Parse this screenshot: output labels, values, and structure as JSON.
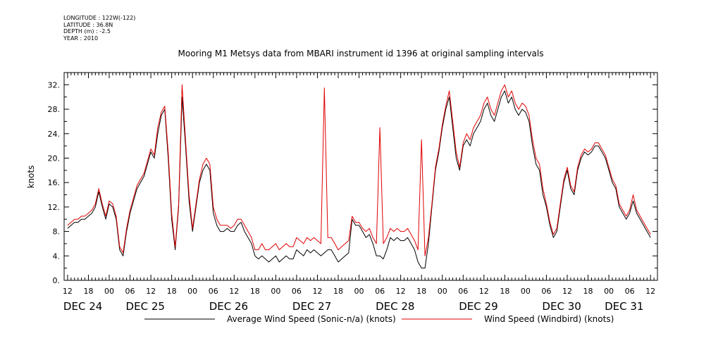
{
  "meta": {
    "longitude": "LONGITUDE : 122W(-122)",
    "latitude": "LATITUDE : 36.8N",
    "depth": "DEPTH (m) : -2.5",
    "year": "YEAR : 2010"
  },
  "chart_data": {
    "type": "line",
    "title": "Mooring M1 Metsys data from MBARI instrument id 1396 at original sampling intervals",
    "xlabel": "",
    "ylabel": "knots",
    "ylim": [
      0,
      34
    ],
    "yticks": [
      0,
      4,
      8,
      12,
      16,
      20,
      24,
      28,
      32
    ],
    "ytick_labels": [
      "0.",
      "4.",
      "8.",
      "12.",
      "16.",
      "20.",
      "24.",
      "28.",
      "32."
    ],
    "xlim_hours": [
      -13,
      158
    ],
    "hour_ticks": [
      {
        "h": -12,
        "label": "12"
      },
      {
        "h": -6,
        "label": "18"
      },
      {
        "h": 0,
        "label": "00"
      },
      {
        "h": 6,
        "label": "06"
      },
      {
        "h": 12,
        "label": "12"
      },
      {
        "h": 18,
        "label": "18"
      },
      {
        "h": 24,
        "label": "00"
      },
      {
        "h": 30,
        "label": "06"
      },
      {
        "h": 36,
        "label": "12"
      },
      {
        "h": 42,
        "label": "18"
      },
      {
        "h": 48,
        "label": "00"
      },
      {
        "h": 54,
        "label": "06"
      },
      {
        "h": 60,
        "label": "12"
      },
      {
        "h": 66,
        "label": "18"
      },
      {
        "h": 72,
        "label": "00"
      },
      {
        "h": 78,
        "label": "06"
      },
      {
        "h": 84,
        "label": "12"
      },
      {
        "h": 90,
        "label": "18"
      },
      {
        "h": 96,
        "label": "00"
      },
      {
        "h": 102,
        "label": "06"
      },
      {
        "h": 108,
        "label": "12"
      },
      {
        "h": 114,
        "label": "18"
      },
      {
        "h": 120,
        "label": "00"
      },
      {
        "h": 126,
        "label": "06"
      },
      {
        "h": 132,
        "label": "12"
      },
      {
        "h": 138,
        "label": "18"
      },
      {
        "h": 144,
        "label": "00"
      },
      {
        "h": 150,
        "label": "06"
      },
      {
        "h": 156,
        "label": "12"
      }
    ],
    "date_labels": [
      {
        "h": -12,
        "label": "DEC 24"
      },
      {
        "h": 6,
        "label": "DEC 25"
      },
      {
        "h": 30,
        "label": "DEC 26"
      },
      {
        "h": 54,
        "label": "DEC 27"
      },
      {
        "h": 78,
        "label": "DEC 28"
      },
      {
        "h": 102,
        "label": "DEC 29"
      },
      {
        "h": 126,
        "label": "DEC 30"
      },
      {
        "h": 144,
        "label": "DEC 31"
      }
    ],
    "series": [
      {
        "name": "Average Wind Speed (Sonic-n/a) (knots)",
        "color": "#000000",
        "hours": [
          -12,
          -11,
          -10,
          -9,
          -8,
          -7,
          -6,
          -5,
          -4,
          -3,
          -2,
          -1,
          0,
          1,
          2,
          3,
          4,
          5,
          6,
          7,
          8,
          9,
          10,
          11,
          12,
          13,
          14,
          15,
          16,
          17,
          18,
          19,
          20,
          21,
          22,
          23,
          24,
          25,
          26,
          27,
          28,
          29,
          30,
          31,
          32,
          33,
          34,
          35,
          36,
          37,
          38,
          39,
          40,
          41,
          42,
          43,
          44,
          45,
          46,
          47,
          48,
          49,
          50,
          51,
          52,
          53,
          54,
          55,
          56,
          57,
          58,
          59,
          60,
          61,
          62,
          63,
          64,
          65,
          66,
          67,
          68,
          69,
          70,
          71,
          72,
          73,
          74,
          75,
          76,
          77,
          78,
          79,
          80,
          81,
          82,
          83,
          84,
          85,
          86,
          87,
          88,
          89,
          90,
          91,
          92,
          93,
          94,
          95,
          96,
          97,
          98,
          99,
          100,
          101,
          102,
          103,
          104,
          105,
          106,
          107,
          108,
          109,
          110,
          111,
          112,
          113,
          114,
          115,
          116,
          117,
          118,
          119,
          120,
          121,
          122,
          123,
          124,
          125,
          126,
          127,
          128,
          129,
          130,
          131,
          132,
          133,
          134,
          135,
          136,
          137,
          138,
          139,
          140,
          141,
          142,
          143,
          144,
          145,
          146,
          147,
          148,
          149,
          150,
          151,
          152,
          153,
          154,
          155,
          156
        ],
        "values": [
          8.5,
          9,
          9.5,
          9.5,
          10,
          10,
          10.5,
          11,
          12,
          14.5,
          12,
          10,
          12.5,
          12,
          10,
          5,
          4,
          8,
          11,
          13,
          15,
          16,
          17,
          19,
          21,
          20,
          24,
          27,
          28,
          20,
          10,
          5,
          12,
          30,
          22,
          13,
          8,
          12,
          16,
          18,
          19,
          18,
          11,
          9,
          8,
          8,
          8.5,
          8,
          8,
          9,
          9.5,
          8,
          7,
          6,
          4,
          3.5,
          4,
          3.5,
          3,
          3.5,
          4,
          3,
          3.5,
          4,
          3.5,
          3.5,
          5,
          4.5,
          4,
          5,
          4.5,
          5,
          4.5,
          4,
          4.5,
          5,
          5,
          4,
          3,
          3.5,
          4,
          4.5,
          10,
          9,
          9,
          8,
          7,
          7.5,
          6,
          4,
          4,
          3.5,
          5,
          7,
          6.5,
          7,
          6.5,
          6.5,
          7,
          6,
          5,
          3,
          2,
          2,
          6,
          12,
          18,
          21,
          25,
          28,
          30,
          25,
          20,
          18,
          22,
          23,
          22,
          24,
          25,
          26,
          28,
          29,
          27,
          26,
          28,
          30,
          31,
          29,
          30,
          28,
          27,
          28,
          27.5,
          26,
          22,
          19,
          18,
          14,
          12,
          9,
          7,
          8,
          12,
          16,
          18,
          15,
          14,
          18,
          20,
          21,
          20.5,
          21,
          22,
          22,
          21,
          20,
          18,
          16,
          15,
          12,
          11,
          10,
          11,
          13,
          11,
          10,
          9,
          8,
          7
        ]
      },
      {
        "name": "Wind Speed (Windbird) (knots)",
        "color": "#e00000",
        "hours": [
          -12,
          -11,
          -10,
          -9,
          -8,
          -7,
          -6,
          -5,
          -4,
          -3,
          -2,
          -1,
          0,
          1,
          2,
          3,
          4,
          5,
          6,
          7,
          8,
          9,
          10,
          11,
          12,
          13,
          14,
          15,
          16,
          17,
          18,
          19,
          20,
          21,
          22,
          23,
          24,
          25,
          26,
          27,
          28,
          29,
          30,
          31,
          32,
          33,
          34,
          35,
          36,
          37,
          38,
          39,
          40,
          41,
          42,
          43,
          44,
          45,
          46,
          47,
          48,
          49,
          50,
          51,
          52,
          53,
          54,
          55,
          56,
          57,
          58,
          59,
          60,
          61,
          62,
          63,
          64,
          65,
          66,
          67,
          68,
          69,
          70,
          71,
          72,
          73,
          74,
          75,
          76,
          77,
          78,
          79,
          80,
          81,
          82,
          83,
          84,
          85,
          86,
          87,
          88,
          89,
          90,
          91,
          92,
          93,
          94,
          95,
          96,
          97,
          98,
          99,
          100,
          101,
          102,
          103,
          104,
          105,
          106,
          107,
          108,
          109,
          110,
          111,
          112,
          113,
          114,
          115,
          116,
          117,
          118,
          119,
          120,
          121,
          122,
          123,
          124,
          125,
          126,
          127,
          128,
          129,
          130,
          131,
          132,
          133,
          134,
          135,
          136,
          137,
          138,
          139,
          140,
          141,
          142,
          143,
          144,
          145,
          146,
          147,
          148,
          149,
          150,
          151,
          152,
          153,
          154,
          155,
          156
        ],
        "values": [
          9,
          9.5,
          10,
          10,
          10.5,
          10.5,
          11,
          11.5,
          12.5,
          15,
          12.5,
          10.5,
          13,
          12.5,
          10.5,
          5.5,
          4.5,
          8.5,
          11.5,
          13.5,
          15.5,
          16.5,
          17.5,
          19.5,
          21.5,
          20.5,
          25,
          27.5,
          28.5,
          21,
          11,
          5.5,
          12.5,
          32,
          23,
          14,
          8.5,
          12.5,
          16.5,
          19,
          20,
          19,
          12,
          10,
          9,
          9,
          9,
          8.5,
          9,
          10,
          10,
          9,
          8,
          7,
          5,
          5,
          6,
          5,
          5,
          5.5,
          6,
          5,
          5.5,
          6,
          5.5,
          5.5,
          7,
          6.5,
          6,
          7,
          6.5,
          7,
          6.5,
          6,
          31.5,
          7,
          7,
          6,
          5,
          5.5,
          6,
          6.5,
          10.5,
          9.5,
          9.5,
          8.5,
          8,
          8.5,
          7,
          6,
          25,
          6,
          7,
          8.5,
          8,
          8.5,
          8,
          8,
          8.5,
          7.5,
          6.5,
          5,
          23,
          4,
          7,
          12.5,
          18.5,
          21.5,
          25.5,
          28.5,
          31,
          26,
          21,
          18.5,
          22.5,
          24,
          23,
          25,
          26,
          27,
          29,
          30,
          28,
          27,
          29,
          31,
          32,
          30,
          31,
          29,
          28,
          29,
          28.5,
          27,
          23,
          20,
          19,
          15,
          12.5,
          9.5,
          7.5,
          8.5,
          12.5,
          16.5,
          18.5,
          15.5,
          14.5,
          18.5,
          20.5,
          21.5,
          21,
          21.5,
          22.5,
          22.5,
          21.5,
          20.5,
          18.5,
          16.5,
          15.5,
          12.5,
          11.5,
          10.5,
          11.5,
          14,
          11.5,
          10.5,
          9.5,
          8.5,
          7.5
        ]
      }
    ],
    "legend": "bottom",
    "grid": false
  }
}
